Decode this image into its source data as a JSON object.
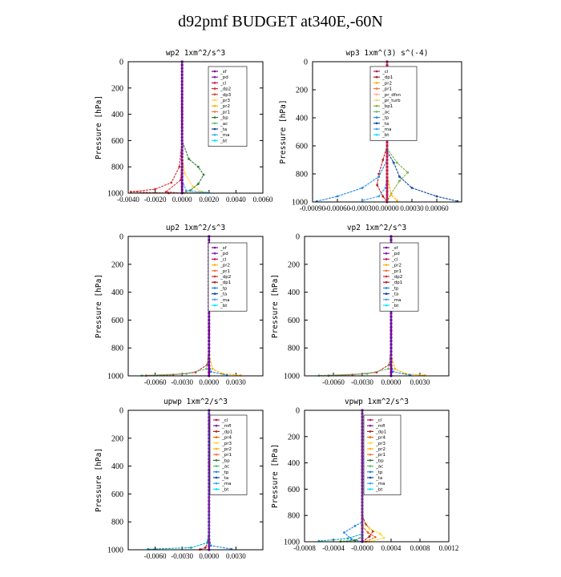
{
  "title": "d92pmf  BUDGET at340E,-60N",
  "colors": {
    "sf": "#7b0099",
    "pd": "#7b1fa2",
    "cl": "#c2185b",
    "mfl": "#7b1fa2",
    "dp1": "#b71c1c",
    "dp2": "#d32f2f",
    "dp3": "#e53935",
    "dp4": "#c62828",
    "pr1": "#ff7043",
    "pr2": "#ffb300",
    "pr3": "#fdd835",
    "pr4": "#ef6c00",
    "bp": "#2e7d32",
    "ac": "#66bb6a",
    "tp": "#1e88e5",
    "ta": "#0d47a1",
    "ma": "#42a5f5",
    "bt": "#00e5ff",
    "bp1": "#7cb342",
    "pr_dfsn": "#ffab91",
    "pr_turb": "#ffcc80",
    "ac2": "#00acc1"
  },
  "chart_data": [
    {
      "type": "line",
      "title": "wp2  1xm^2/s^3",
      "ylabel": "Pressure [hPa]",
      "ylim": [
        1000,
        0
      ],
      "yticks": [
        "0",
        "200",
        "400",
        "600",
        "800",
        "1000"
      ],
      "xlim": [
        -0.004,
        0.006
      ],
      "xticks": [
        "-0.0040",
        "-0.0020",
        "0.0000",
        "0.0020",
        "0.0040",
        "0.0060"
      ],
      "legend": [
        "_sf",
        "_pd",
        "_cl",
        "_dp2",
        "_dp3",
        "_pr3",
        "_pr2",
        "_pr1",
        "_bp",
        "_ac",
        "_ta",
        "_ma",
        "_bt"
      ],
      "series": [
        {
          "name": "_sf",
          "color_key": "sf",
          "points": [
            [
              0,
              0
            ],
            [
              0,
              500
            ],
            [
              0,
              800
            ],
            [
              0,
              950
            ],
            [
              0,
              1000
            ]
          ]
        },
        {
          "name": "_dp2",
          "color_key": "dp2",
          "points": [
            [
              0,
              0
            ],
            [
              0,
              600
            ],
            [
              -0.0002,
              800
            ],
            [
              -0.0008,
              920
            ],
            [
              -0.002,
              970
            ],
            [
              -0.0038,
              990
            ],
            [
              -0.001,
              1000
            ]
          ]
        },
        {
          "name": "_pr3",
          "color_key": "pr3",
          "points": [
            [
              0,
              0
            ],
            [
              0,
              700
            ],
            [
              0.0002,
              850
            ],
            [
              0.0008,
              950
            ],
            [
              0.0015,
              990
            ],
            [
              0.0002,
              1000
            ]
          ]
        },
        {
          "name": "_bp",
          "color_key": "bp",
          "points": [
            [
              0,
              0
            ],
            [
              0,
              600
            ],
            [
              0.0005,
              740
            ],
            [
              0.0012,
              800
            ],
            [
              0.0016,
              860
            ],
            [
              0.0012,
              930
            ],
            [
              0.0006,
              980
            ],
            [
              0,
              1000
            ]
          ]
        },
        {
          "name": "_dp3",
          "color_key": "dp3",
          "points": [
            [
              0,
              0
            ],
            [
              0,
              700
            ],
            [
              -0.0001,
              900
            ],
            [
              -0.0012,
              990
            ],
            [
              0,
              1000
            ]
          ]
        },
        {
          "name": "_ma",
          "color_key": "ma",
          "points": [
            [
              0,
              0
            ],
            [
              0,
              900
            ],
            [
              0.0003,
              980
            ],
            [
              0.002,
              995
            ],
            [
              0,
              1000
            ]
          ]
        }
      ]
    },
    {
      "type": "line",
      "title": "wp3  1xm^(3) s^(-4)",
      "ylabel": "Pressure [hPa]",
      "ylim": [
        1000,
        0
      ],
      "yticks": [
        "0",
        "200",
        "400",
        "600",
        "800",
        "1000"
      ],
      "xlim": [
        -0.0009,
        0.0009
      ],
      "xticks": [
        "-0.00090",
        "-0.00060",
        "-0.00030",
        "0.00000",
        "0.00030",
        "0.00060"
      ],
      "legend": [
        "_cl",
        "_dp1",
        "_pr2",
        "_pr1",
        "_pr_dfsn",
        "_pr_turb",
        "_bp1",
        "_ac",
        "_tp",
        "_ta",
        "_ma",
        "_bt"
      ],
      "series": [
        {
          "name": "_cl",
          "color_key": "cl",
          "points": [
            [
              0,
              0
            ],
            [
              0,
              500
            ],
            [
              0,
              700
            ],
            [
              0,
              1000
            ]
          ]
        },
        {
          "name": "_dp1",
          "color_key": "dp1",
          "points": [
            [
              0,
              0
            ],
            [
              0,
              600
            ],
            [
              -5e-05,
              700
            ],
            [
              -0.0001,
              800
            ],
            [
              -0.00012,
              880
            ],
            [
              -5e-05,
              960
            ],
            [
              0,
              1000
            ]
          ]
        },
        {
          "name": "_bp1",
          "color_key": "bp1",
          "points": [
            [
              0,
              0
            ],
            [
              0,
              620
            ],
            [
              0.00012,
              720
            ],
            [
              0.00025,
              790
            ],
            [
              0.00015,
              850
            ],
            [
              5e-05,
              940
            ],
            [
              0,
              1000
            ]
          ]
        },
        {
          "name": "_ta",
          "color_key": "ta",
          "points": [
            [
              0,
              0
            ],
            [
              0,
              640
            ],
            [
              8e-05,
              720
            ],
            [
              0.00015,
              820
            ],
            [
              0.0003,
              900
            ],
            [
              0.0006,
              960
            ],
            [
              0.00085,
              995
            ]
          ]
        },
        {
          "name": "_tp",
          "color_key": "tp",
          "points": [
            [
              0,
              0
            ],
            [
              0,
              700
            ],
            [
              -0.0001,
              820
            ],
            [
              -0.0003,
              900
            ],
            [
              -0.0006,
              960
            ],
            [
              -0.00085,
              995
            ]
          ]
        },
        {
          "name": "_ma",
          "color_key": "ma",
          "points": [
            [
              0,
              0
            ],
            [
              0,
              800
            ],
            [
              -2e-05,
              900
            ],
            [
              -0.0001,
              960
            ],
            [
              -0.0003,
              990
            ]
          ]
        },
        {
          "name": "_pr2",
          "color_key": "pr2",
          "points": [
            [
              0,
              0
            ],
            [
              0,
              800
            ],
            [
              5e-05,
              950
            ],
            [
              0.00012,
              990
            ]
          ]
        }
      ]
    },
    {
      "type": "line",
      "title": "up2  1xm^2/s^3",
      "ylabel": "Pressure [hPa]",
      "ylim": [
        1000,
        0
      ],
      "yticks": [
        "0",
        "200",
        "400",
        "600",
        "800",
        "1000"
      ],
      "xlim": [
        -0.009,
        0.006
      ],
      "xticks": [
        "-0.0060",
        "-0.0030",
        "0.0000",
        "0.0030"
      ],
      "legend": [
        "_sf",
        "_pd",
        "_cl",
        "_pr2",
        "_pr1",
        "_dp2",
        "_dp1",
        "_tp",
        "_ta",
        "_ma",
        "_bt"
      ],
      "series": [
        {
          "name": "_sf",
          "color_key": "sf",
          "points": [
            [
              0,
              0
            ],
            [
              0,
              500
            ],
            [
              0,
              1000
            ]
          ]
        },
        {
          "name": "_dp2",
          "color_key": "dp2",
          "points": [
            [
              0,
              0
            ],
            [
              0,
              800
            ],
            [
              -0.0002,
              920
            ],
            [
              -0.0015,
              975
            ],
            [
              -0.004,
              992
            ],
            [
              -0.007,
              998
            ]
          ]
        },
        {
          "name": "_pr2",
          "color_key": "pr2",
          "points": [
            [
              0,
              0
            ],
            [
              0,
              850
            ],
            [
              0.0004,
              950
            ],
            [
              0.0015,
              985
            ],
            [
              0.0035,
              996
            ]
          ]
        },
        {
          "name": "_dp1",
          "color_key": "ac",
          "points": [
            [
              0,
              0
            ],
            [
              0,
              850
            ],
            [
              -0.0003,
              950
            ],
            [
              -0.0025,
              985
            ],
            [
              -0.0075,
              998
            ]
          ]
        },
        {
          "name": "_tp",
          "color_key": "tp",
          "points": [
            [
              0,
              0
            ],
            [
              0,
              900
            ],
            [
              0.0002,
              970
            ],
            [
              0.002,
              995
            ]
          ]
        }
      ]
    },
    {
      "type": "line",
      "title": "vp2  1xm^2/s^3",
      "ylabel": "Pressure [hPa]",
      "ylim": [
        1000,
        0
      ],
      "yticks": [
        "0",
        "200",
        "400",
        "600",
        "800",
        "1000"
      ],
      "xlim": [
        -0.009,
        0.006
      ],
      "xticks": [
        "-0.0060",
        "-0.0030",
        "0.0000",
        "0.0030"
      ],
      "legend": [
        "_sf",
        "_pd",
        "_cl",
        "_pr2",
        "_pr1",
        "_dp2",
        "_dp1",
        "_tp",
        "_ta",
        "_ma",
        "_bt"
      ],
      "series": [
        {
          "name": "_sf",
          "color_key": "sf",
          "points": [
            [
              0,
              0
            ],
            [
              0,
              500
            ],
            [
              0,
              1000
            ]
          ]
        },
        {
          "name": "_dp2",
          "color_key": "dp2",
          "points": [
            [
              0,
              0
            ],
            [
              0,
              800
            ],
            [
              -0.0002,
              920
            ],
            [
              -0.0015,
              975
            ],
            [
              -0.004,
              992
            ],
            [
              -0.0065,
              998
            ]
          ]
        },
        {
          "name": "_pr2",
          "color_key": "pr2",
          "points": [
            [
              0,
              0
            ],
            [
              0,
              850
            ],
            [
              0.0004,
              950
            ],
            [
              0.0015,
              985
            ],
            [
              0.0035,
              996
            ]
          ]
        },
        {
          "name": "_dp1",
          "color_key": "ac",
          "points": [
            [
              0,
              0
            ],
            [
              0,
              850
            ],
            [
              -0.0003,
              950
            ],
            [
              -0.0025,
              985
            ],
            [
              -0.0075,
              998
            ]
          ]
        },
        {
          "name": "_tp",
          "color_key": "tp",
          "points": [
            [
              0,
              0
            ],
            [
              0,
              900
            ],
            [
              0.0002,
              970
            ],
            [
              0.002,
              995
            ]
          ]
        }
      ]
    },
    {
      "type": "line",
      "title": "upwp  1xm^2/s^3",
      "ylabel": "Pressure [hPa]",
      "ylim": [
        1000,
        0
      ],
      "yticks": [
        "0",
        "200",
        "400",
        "600",
        "800",
        "1000"
      ],
      "xlim": [
        -0.009,
        0.006
      ],
      "xticks": [
        "-0.0060",
        "-0.0030",
        "0.0000",
        "0.0030"
      ],
      "legend": [
        "_cl",
        "_mfl",
        "_dp1",
        "_pr4",
        "_pr3",
        "_pr2",
        "_pr1",
        "_bp",
        "_ac",
        "_tp",
        "_ta",
        "_ma",
        "_bt"
      ],
      "series": [
        {
          "name": "_cl",
          "color_key": "mfl",
          "points": [
            [
              0,
              0
            ],
            [
              0,
              500
            ],
            [
              0,
              1000
            ]
          ]
        },
        {
          "name": "_dp1",
          "color_key": "dp1",
          "points": [
            [
              0,
              0
            ],
            [
              0,
              800
            ],
            [
              -0.0001,
              940
            ],
            [
              -0.0004,
              985
            ],
            [
              -0.001,
              998
            ]
          ]
        },
        {
          "name": "_tp",
          "color_key": "ac2",
          "points": [
            [
              0,
              0
            ],
            [
              0,
              850
            ],
            [
              -0.0002,
              950
            ],
            [
              -0.002,
              985
            ],
            [
              -0.0068,
              996
            ]
          ]
        },
        {
          "name": "_ta",
          "color_key": "tp",
          "points": [
            [
              0,
              0
            ],
            [
              0,
              900
            ],
            [
              0.0002,
              970
            ],
            [
              0.0025,
              995
            ]
          ]
        }
      ]
    },
    {
      "type": "line",
      "title": "vpwp  1xm^2/s^3",
      "ylabel": "Pressure [hPa]",
      "ylim": [
        1000,
        0
      ],
      "yticks": [
        "0",
        "200",
        "400",
        "600",
        "800",
        "1000"
      ],
      "xlim": [
        -0.0008,
        0.0012
      ],
      "xticks": [
        "-0.0008",
        "-0.0004",
        "-0.0000",
        "0.0004",
        "0.0008",
        "0.0012"
      ],
      "legend": [
        "_cl",
        "_mfl",
        "_dp1",
        "_pr4",
        "_pr3",
        "_pr2",
        "_pr1",
        "_bp",
        "_ac",
        "_tp",
        "_ta",
        "_ma",
        "_bt"
      ],
      "series": [
        {
          "name": "_cl",
          "color_key": "mfl",
          "points": [
            [
              0,
              0
            ],
            [
              0,
              500
            ],
            [
              0,
              1000
            ]
          ]
        },
        {
          "name": "_dp1",
          "color_key": "dp1",
          "points": [
            [
              0,
              0
            ],
            [
              0,
              800
            ],
            [
              5e-05,
              870
            ],
            [
              0.00015,
              920
            ],
            [
              0.0001,
              960
            ],
            [
              0,
              1000
            ]
          ]
        },
        {
          "name": "_pr2",
          "color_key": "pr3",
          "points": [
            [
              0,
              0
            ],
            [
              0,
              850
            ],
            [
              0.0001,
              900
            ],
            [
              0.00025,
              940
            ],
            [
              0.0003,
              970
            ],
            [
              0.0001,
              1000
            ]
          ]
        },
        {
          "name": "_pr1",
          "color_key": "pr4",
          "points": [
            [
              0,
              0
            ],
            [
              0,
              880
            ],
            [
              8e-05,
              930
            ],
            [
              0.00018,
              965
            ],
            [
              5e-05,
              1000
            ]
          ]
        },
        {
          "name": "_tp",
          "color_key": "tp",
          "points": [
            [
              0,
              0
            ],
            [
              0,
              850
            ],
            [
              -0.0001,
              880
            ],
            [
              -0.00025,
              930
            ],
            [
              -0.00015,
              980
            ],
            [
              0,
              1000
            ]
          ]
        },
        {
          "name": "_ac",
          "color_key": "ac2",
          "points": [
            [
              0,
              0
            ],
            [
              0,
              940
            ],
            [
              -0.0002,
              975
            ],
            [
              -0.0006,
              995
            ]
          ]
        },
        {
          "name": "_bp",
          "color_key": "bp",
          "points": [
            [
              0,
              0
            ],
            [
              0,
              960
            ],
            [
              -0.0001,
              990
            ],
            [
              -0.0003,
              998
            ]
          ]
        }
      ]
    }
  ]
}
